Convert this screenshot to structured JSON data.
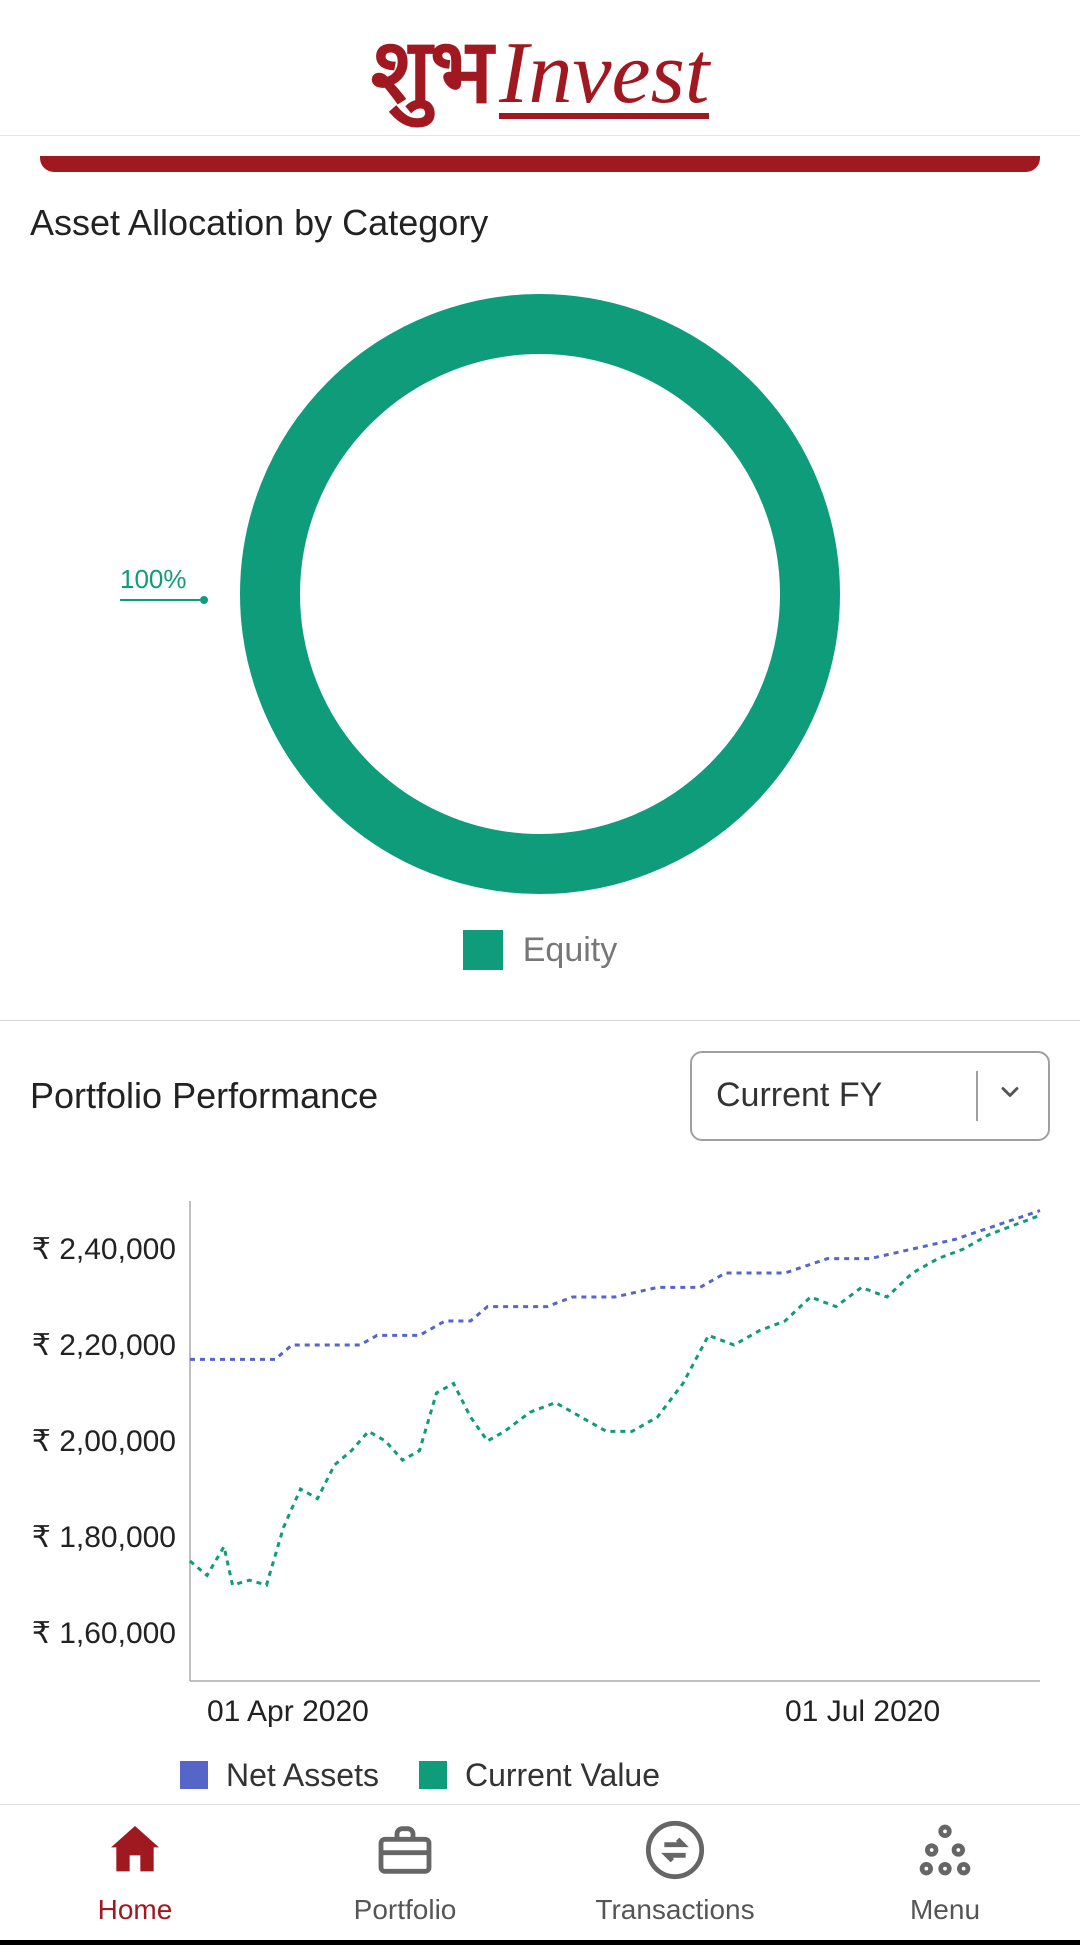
{
  "brand": {
    "script_text": "शुभ",
    "word_text": "Invest",
    "color": "#a01820"
  },
  "asset_allocation": {
    "title": "Asset Allocation by Category",
    "donut": {
      "type": "donut",
      "slices": [
        {
          "label": "Equity",
          "value": 100,
          "color": "#0f9c7a"
        }
      ],
      "callout_label": "100%",
      "callout_color": "#0f9c7a",
      "inner_radius_pct": 80,
      "outer_radius_pct": 100,
      "background_color": "#ffffff"
    },
    "legend_label": "Equity"
  },
  "performance": {
    "title": "Portfolio Performance",
    "dropdown": {
      "selected": "Current FY"
    },
    "chart": {
      "type": "line",
      "ylim": [
        150000,
        250000
      ],
      "ytick_step": 20000,
      "ytick_labels": [
        "₹ 1,60,000",
        "₹ 1,80,000",
        "₹ 2,00,000",
        "₹ 2,20,000",
        "₹ 2,40,000"
      ],
      "ytick_values": [
        160000,
        180000,
        200000,
        220000,
        240000
      ],
      "xtick_labels": [
        "01 Apr 2020",
        "01 Jul 2020"
      ],
      "xtick_positions": [
        0.02,
        0.7
      ],
      "grid_color": "#aaaaaa",
      "background_color": "#ffffff",
      "label_fontsize": 30,
      "line_width": 3,
      "dash_pattern": "5 5",
      "series": [
        {
          "name": "Net Assets",
          "color": "#5565c8",
          "values": [
            [
              0.0,
              217000
            ],
            [
              0.1,
              217000
            ],
            [
              0.12,
              220000
            ],
            [
              0.2,
              220000
            ],
            [
              0.22,
              222000
            ],
            [
              0.27,
              222000
            ],
            [
              0.3,
              225000
            ],
            [
              0.33,
              225000
            ],
            [
              0.35,
              228000
            ],
            [
              0.42,
              228000
            ],
            [
              0.45,
              230000
            ],
            [
              0.5,
              230000
            ],
            [
              0.55,
              232000
            ],
            [
              0.6,
              232000
            ],
            [
              0.63,
              235000
            ],
            [
              0.7,
              235000
            ],
            [
              0.75,
              238000
            ],
            [
              0.8,
              238000
            ],
            [
              0.85,
              240000
            ],
            [
              0.9,
              242000
            ],
            [
              0.95,
              245000
            ],
            [
              1.0,
              248000
            ]
          ]
        },
        {
          "name": "Current Value",
          "color": "#0f9c7a",
          "values": [
            [
              0.0,
              175000
            ],
            [
              0.02,
              172000
            ],
            [
              0.04,
              178000
            ],
            [
              0.05,
              170000
            ],
            [
              0.07,
              171000
            ],
            [
              0.09,
              170000
            ],
            [
              0.11,
              182000
            ],
            [
              0.13,
              190000
            ],
            [
              0.15,
              188000
            ],
            [
              0.17,
              195000
            ],
            [
              0.19,
              198000
            ],
            [
              0.21,
              202000
            ],
            [
              0.23,
              200000
            ],
            [
              0.25,
              196000
            ],
            [
              0.27,
              198000
            ],
            [
              0.29,
              210000
            ],
            [
              0.31,
              212000
            ],
            [
              0.33,
              205000
            ],
            [
              0.35,
              200000
            ],
            [
              0.37,
              202000
            ],
            [
              0.4,
              206000
            ],
            [
              0.43,
              208000
            ],
            [
              0.46,
              205000
            ],
            [
              0.49,
              202000
            ],
            [
              0.52,
              202000
            ],
            [
              0.55,
              205000
            ],
            [
              0.58,
              212000
            ],
            [
              0.61,
              222000
            ],
            [
              0.64,
              220000
            ],
            [
              0.67,
              223000
            ],
            [
              0.7,
              225000
            ],
            [
              0.73,
              230000
            ],
            [
              0.76,
              228000
            ],
            [
              0.79,
              232000
            ],
            [
              0.82,
              230000
            ],
            [
              0.85,
              235000
            ],
            [
              0.88,
              238000
            ],
            [
              0.91,
              240000
            ],
            [
              0.94,
              243000
            ],
            [
              0.97,
              245000
            ],
            [
              1.0,
              247000
            ]
          ]
        }
      ],
      "legend": [
        {
          "label": "Net Assets",
          "color": "#5565c8"
        },
        {
          "label": "Current Value",
          "color": "#0f9c7a"
        }
      ]
    }
  },
  "nav": {
    "items": [
      {
        "label": "Home",
        "icon": "home-icon",
        "active": true
      },
      {
        "label": "Portfolio",
        "icon": "briefcase-icon",
        "active": false
      },
      {
        "label": "Transactions",
        "icon": "swap-icon",
        "active": false
      },
      {
        "label": "Menu",
        "icon": "dots-icon",
        "active": false
      }
    ]
  }
}
